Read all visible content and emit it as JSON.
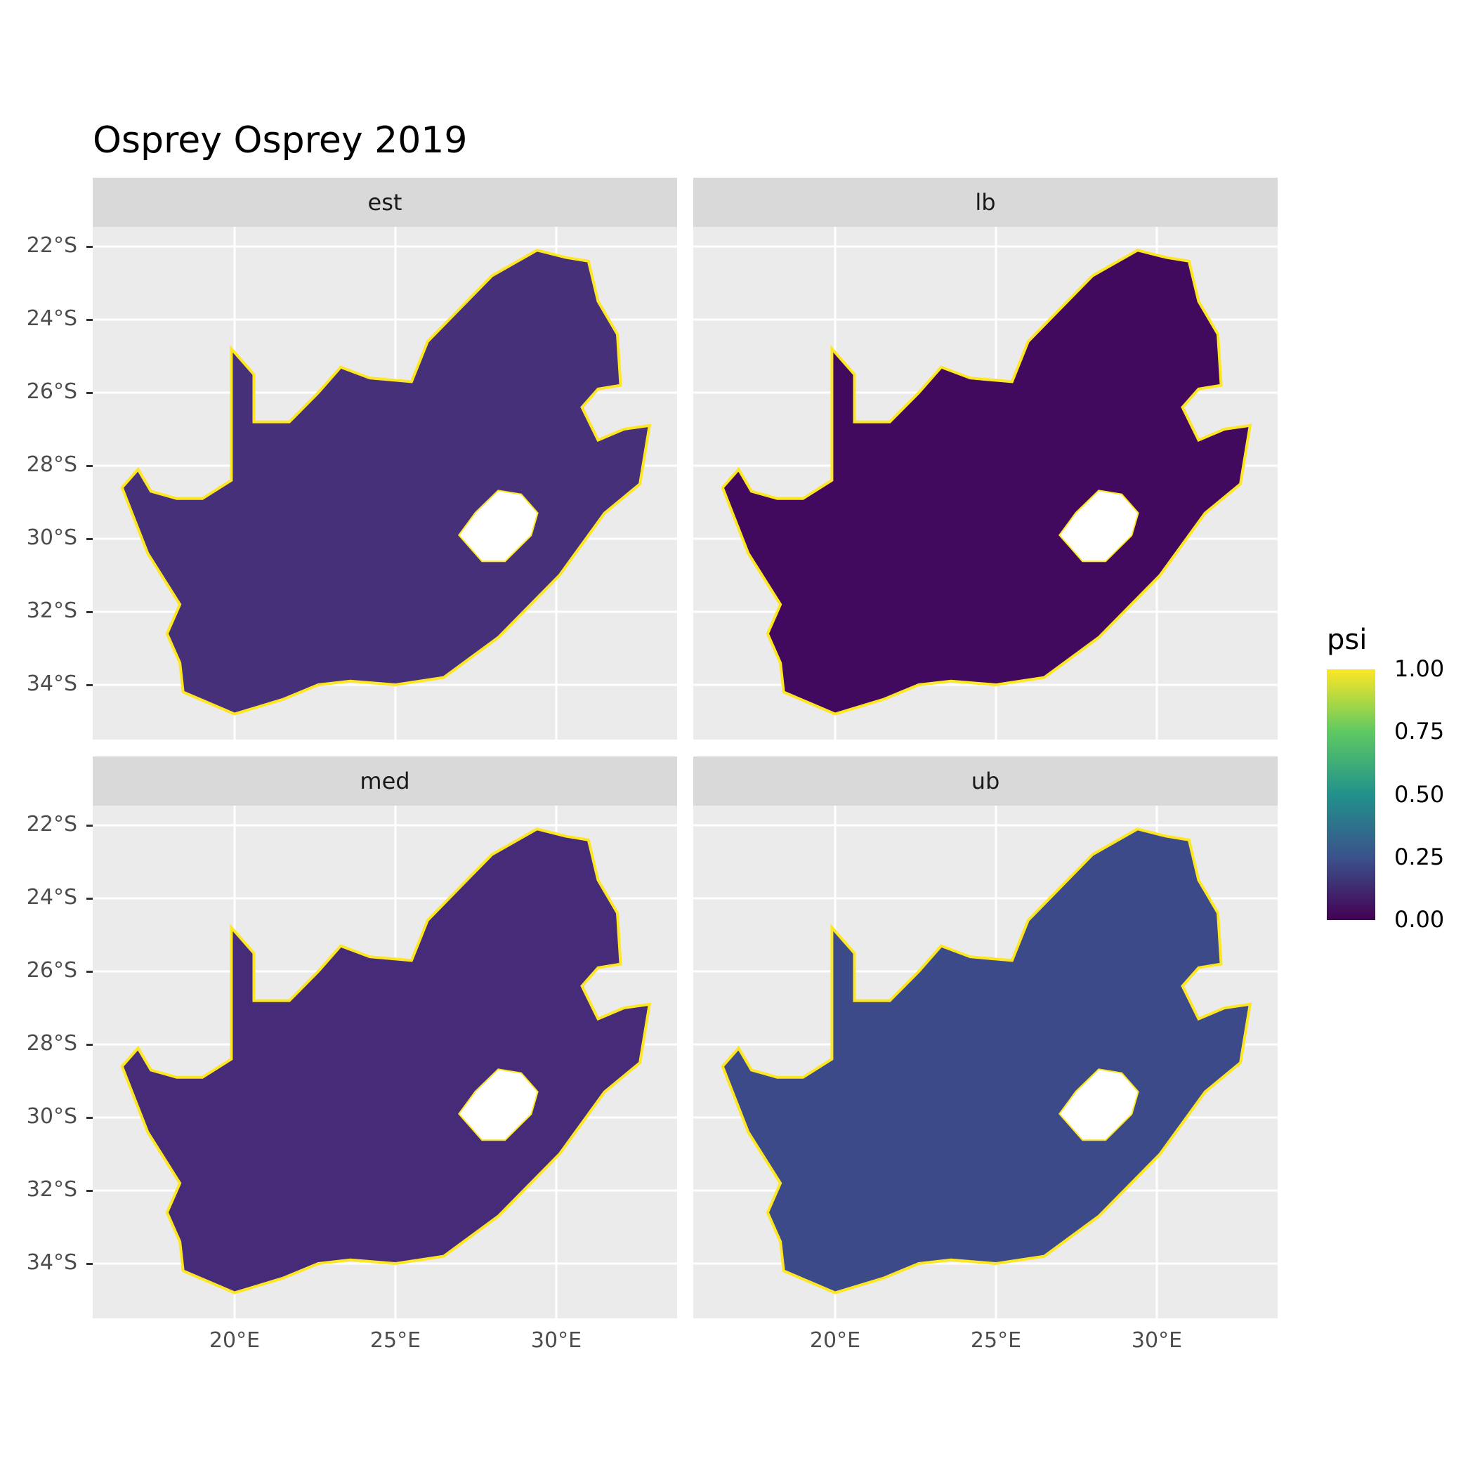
{
  "title": "Osprey Osprey 2019",
  "facets": [
    {
      "label": "est",
      "fill": "#46307a"
    },
    {
      "label": "lb",
      "fill": "#420a5e"
    },
    {
      "label": "med",
      "fill": "#462c78"
    },
    {
      "label": "ub",
      "fill": "#3d4a89"
    }
  ],
  "y_ticks": [
    "22°S",
    "24°S",
    "26°S",
    "28°S",
    "30°S",
    "32°S",
    "34°S"
  ],
  "x_ticks": [
    "20°E",
    "25°E",
    "30°E"
  ],
  "legend": {
    "title": "psi",
    "labels": [
      "1.00",
      "0.75",
      "0.50",
      "0.25",
      "0.00"
    ]
  },
  "colors": {
    "edge": "#fde725",
    "hole": "#ffffff"
  }
}
